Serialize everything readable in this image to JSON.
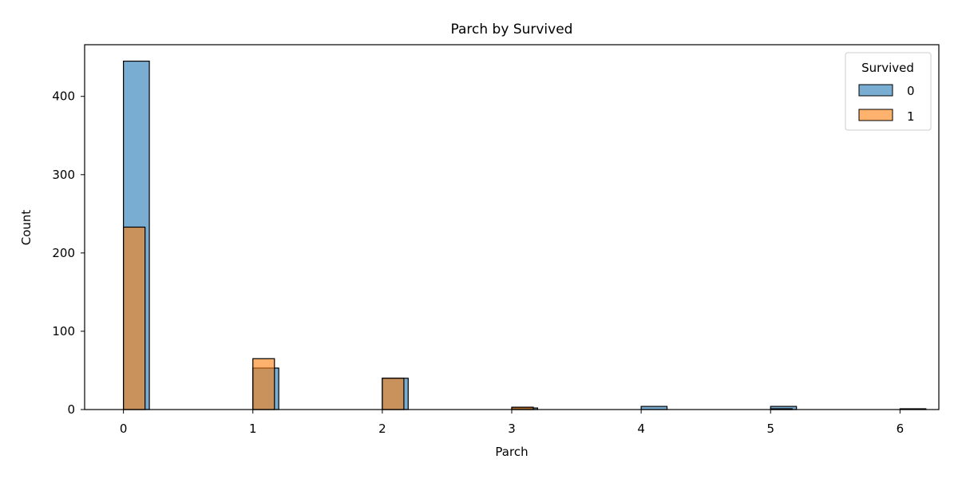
{
  "chart_data": {
    "type": "bar",
    "title": "Parch by Survived",
    "xlabel": "Parch",
    "ylabel": "Count",
    "xlim": [
      -0.3,
      6.3
    ],
    "ylim": [
      0,
      466
    ],
    "x_ticks": [
      "0",
      "1",
      "2",
      "3",
      "4",
      "5",
      "6"
    ],
    "y_ticks": [
      "0",
      "100",
      "200",
      "300",
      "400"
    ],
    "grid": false,
    "legend": {
      "title": "Survived",
      "placement": "top-right"
    },
    "colors": {
      "0": "#1f77b4",
      "1": "#ff7f0e"
    },
    "series": [
      {
        "name": "0",
        "bins": [
          {
            "x0": 0.0,
            "x1": 0.2,
            "value": 445
          },
          {
            "x0": 1.0,
            "x1": 1.2,
            "value": 53
          },
          {
            "x0": 2.0,
            "x1": 2.2,
            "value": 40
          },
          {
            "x0": 3.0,
            "x1": 3.2,
            "value": 2
          },
          {
            "x0": 4.0,
            "x1": 4.2,
            "value": 4
          },
          {
            "x0": 5.0,
            "x1": 5.2,
            "value": 4
          },
          {
            "x0": 6.0,
            "x1": 6.2,
            "value": 1
          }
        ]
      },
      {
        "name": "1",
        "bins": [
          {
            "x0": 0.0,
            "x1": 0.1667,
            "value": 233
          },
          {
            "x0": 1.0,
            "x1": 1.1667,
            "value": 65
          },
          {
            "x0": 2.0,
            "x1": 2.1667,
            "value": 40
          },
          {
            "x0": 3.0,
            "x1": 3.1667,
            "value": 3
          },
          {
            "x0": 5.0,
            "x1": 5.1667,
            "value": 1
          }
        ]
      }
    ]
  }
}
